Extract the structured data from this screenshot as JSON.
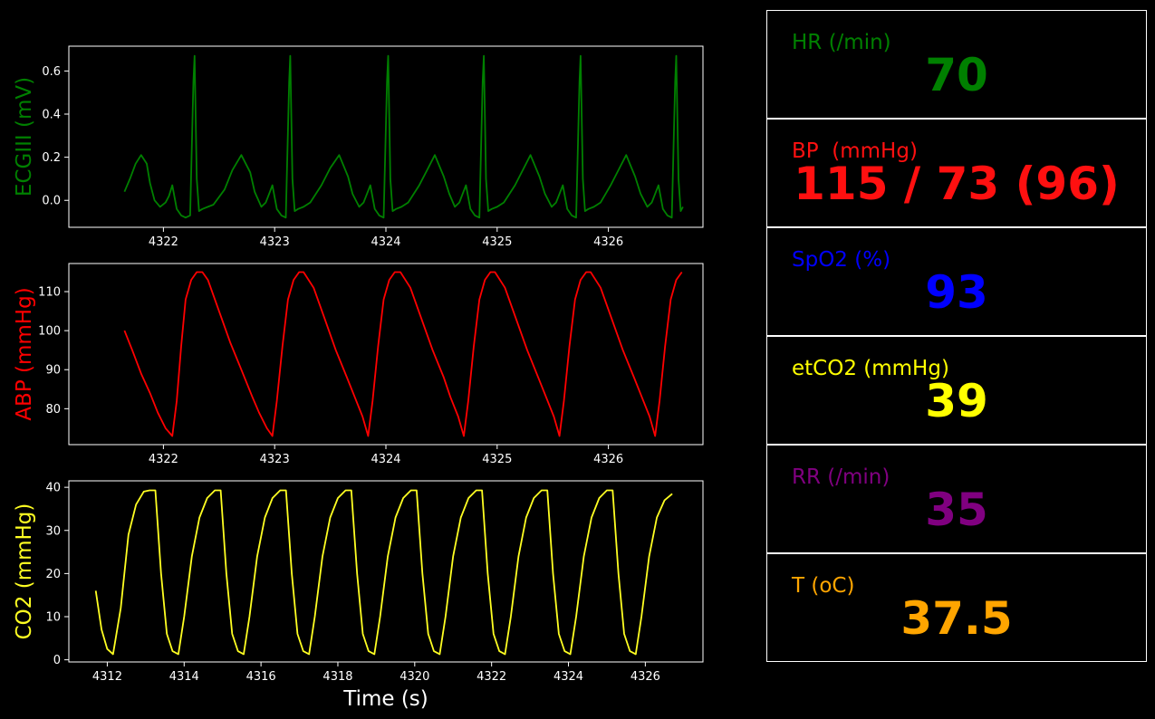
{
  "colors": {
    "background": "#000000",
    "axes": "#ffffff"
  },
  "chart_data": [
    {
      "type": "line",
      "ylabel": "ECGIII (mV)",
      "color": "#008000",
      "xlim": [
        4321.15,
        4326.85
      ],
      "ylim": [
        -0.125,
        0.715
      ],
      "xticks": [
        4322,
        4323,
        4324,
        4325,
        4326
      ],
      "yticks": [
        0.0,
        0.2,
        0.4,
        0.6
      ],
      "ytick_labels": [
        "0.0",
        "0.2",
        "0.4",
        "0.6"
      ],
      "grid": false,
      "series": [
        {
          "x": [
            4321.65,
            4321.7,
            4321.75,
            4321.8,
            4321.85,
            4321.88,
            4321.92,
            4321.97,
            4322.02,
            4322.05,
            4322.08,
            4322.12,
            4322.16,
            4322.2,
            4322.24,
            4322.27,
            4322.28,
            4322.3,
            4322.32,
            4322.35,
            4322.4,
            4322.45,
            4322.55,
            4322.62,
            4322.7,
            4322.78,
            4322.82,
            4322.88,
            4322.92,
            4322.95,
            4322.98,
            4323.02,
            4323.06,
            4323.1,
            4323.13,
            4323.14,
            4323.16,
            4323.18,
            4323.21,
            4323.26,
            4323.32,
            4323.42,
            4323.5,
            4323.58,
            4323.66,
            4323.7,
            4323.76,
            4323.8,
            4323.83,
            4323.86,
            4323.9,
            4323.94,
            4323.98,
            4324.01,
            4324.02,
            4324.04,
            4324.06,
            4324.09,
            4324.14,
            4324.2,
            4324.3,
            4324.38,
            4324.44,
            4324.52,
            4324.57,
            4324.62,
            4324.66,
            4324.69,
            4324.72,
            4324.76,
            4324.8,
            4324.84,
            4324.87,
            4324.88,
            4324.9,
            4324.92,
            4324.95,
            4325.0,
            4325.06,
            4325.16,
            4325.24,
            4325.3,
            4325.38,
            4325.43,
            4325.49,
            4325.53,
            4325.56,
            4325.59,
            4325.63,
            4325.67,
            4325.71,
            4325.74,
            4325.75,
            4325.77,
            4325.79,
            4325.82,
            4325.87,
            4325.93,
            4326.02,
            4326.1,
            4326.16,
            4326.24,
            4326.29,
            4326.35,
            4326.39,
            4326.42,
            4326.45,
            4326.49,
            4326.53,
            4326.57,
            4326.6,
            4326.61,
            4326.63,
            4326.65,
            4326.67
          ],
          "y": [
            0.04,
            0.1,
            0.17,
            0.21,
            0.17,
            0.08,
            0.0,
            -0.03,
            -0.01,
            0.02,
            0.07,
            -0.04,
            -0.07,
            -0.08,
            -0.07,
            0.55,
            0.67,
            0.1,
            -0.05,
            -0.04,
            -0.03,
            -0.02,
            0.05,
            0.14,
            0.21,
            0.13,
            0.04,
            -0.03,
            -0.01,
            0.03,
            0.07,
            -0.04,
            -0.07,
            -0.08,
            0.55,
            0.67,
            0.1,
            -0.05,
            -0.04,
            -0.03,
            -0.01,
            0.07,
            0.15,
            0.21,
            0.11,
            0.03,
            -0.03,
            -0.01,
            0.03,
            0.07,
            -0.04,
            -0.07,
            -0.08,
            0.55,
            0.67,
            0.1,
            -0.05,
            -0.04,
            -0.03,
            -0.01,
            0.07,
            0.15,
            0.21,
            0.11,
            0.03,
            -0.03,
            -0.01,
            0.03,
            0.07,
            -0.04,
            -0.07,
            -0.08,
            0.55,
            0.67,
            0.1,
            -0.05,
            -0.04,
            -0.03,
            -0.01,
            0.07,
            0.15,
            0.21,
            0.11,
            0.03,
            -0.03,
            -0.01,
            0.03,
            0.07,
            -0.04,
            -0.07,
            -0.08,
            0.55,
            0.67,
            0.1,
            -0.05,
            -0.04,
            -0.03,
            -0.01,
            0.07,
            0.15,
            0.21,
            0.11,
            0.03,
            -0.03,
            -0.01,
            0.03,
            0.07,
            -0.04,
            -0.07,
            -0.08,
            0.55,
            0.67,
            0.1,
            -0.05,
            -0.03
          ]
        }
      ]
    },
    {
      "type": "line",
      "ylabel": "ABP (mmHg)",
      "color": "#ff0000",
      "xlim": [
        4321.15,
        4326.85
      ],
      "ylim": [
        70.8,
        117.2
      ],
      "xticks": [
        4322,
        4323,
        4324,
        4325,
        4326
      ],
      "yticks": [
        80,
        90,
        100,
        110
      ],
      "ytick_labels": [
        "80",
        "90",
        "100",
        "110"
      ],
      "grid": false,
      "series": [
        {
          "x": [
            4321.65,
            4321.72,
            4321.8,
            4321.88,
            4321.95,
            4322.02,
            4322.08,
            4322.12,
            4322.16,
            4322.2,
            4322.25,
            4322.3,
            4322.35,
            4322.4,
            4322.5,
            4322.6,
            4322.7,
            4322.8,
            4322.86,
            4322.93,
            4322.98,
            4323.02,
            4323.07,
            4323.12,
            4323.17,
            4323.22,
            4323.26,
            4323.35,
            4323.45,
            4323.55,
            4323.65,
            4323.72,
            4323.79,
            4323.84,
            4323.88,
            4323.93,
            4323.98,
            4324.03,
            4324.08,
            4324.13,
            4324.22,
            4324.32,
            4324.42,
            4324.52,
            4324.58,
            4324.65,
            4324.7,
            4324.74,
            4324.79,
            4324.84,
            4324.89,
            4324.94,
            4324.98,
            4325.07,
            4325.17,
            4325.27,
            4325.37,
            4325.44,
            4325.51,
            4325.56,
            4325.6,
            4325.65,
            4325.7,
            4325.75,
            4325.8,
            4325.84,
            4325.93,
            4326.03,
            4326.13,
            4326.23,
            4326.3,
            4326.37,
            4326.42,
            4326.46,
            4326.51,
            4326.56,
            4326.61,
            4326.66
          ],
          "y": [
            100,
            95,
            89,
            84,
            79,
            75,
            73,
            82,
            96,
            108,
            113,
            115,
            115,
            113,
            105,
            97,
            90,
            83,
            79,
            75,
            73,
            82,
            96,
            108,
            113,
            115,
            115,
            111,
            103,
            95,
            88,
            83,
            78,
            73,
            82,
            96,
            108,
            113,
            115,
            115,
            111,
            103,
            95,
            88,
            83,
            78,
            73,
            82,
            96,
            108,
            113,
            115,
            115,
            111,
            103,
            95,
            88,
            83,
            78,
            73,
            82,
            96,
            108,
            113,
            115,
            115,
            111,
            103,
            95,
            88,
            83,
            78,
            73,
            82,
            96,
            108,
            113,
            115
          ]
        }
      ]
    },
    {
      "type": "line",
      "ylabel": "CO2 (mmHg)",
      "color": "#ffff22",
      "xlim": [
        4311.0,
        4327.5
      ],
      "ylim": [
        -0.5,
        41.5
      ],
      "xticks": [
        4312,
        4314,
        4316,
        4318,
        4320,
        4322,
        4324,
        4326
      ],
      "yticks": [
        0,
        10,
        20,
        30,
        40
      ],
      "ytick_labels": [
        "0",
        "10",
        "20",
        "30",
        "40"
      ],
      "xlabel": "Time (s)",
      "grid": false,
      "series": [
        {
          "x": [
            4311.7,
            4311.85,
            4312.0,
            4312.15,
            4312.35,
            4312.55,
            4312.75,
            4312.95,
            4313.1,
            4313.25,
            4313.4,
            4313.55,
            4313.7,
            4313.85,
            4314.0,
            4314.2,
            4314.4,
            4314.6,
            4314.8,
            4314.95,
            4315.1,
            4315.25,
            4315.4,
            4315.55,
            4315.7,
            4315.9,
            4316.1,
            4316.3,
            4316.5,
            4316.65,
            4316.8,
            4316.95,
            4317.1,
            4317.25,
            4317.4,
            4317.6,
            4317.8,
            4318.0,
            4318.2,
            4318.35,
            4318.5,
            4318.65,
            4318.8,
            4318.95,
            4319.1,
            4319.3,
            4319.5,
            4319.7,
            4319.9,
            4320.05,
            4320.2,
            4320.35,
            4320.5,
            4320.65,
            4320.8,
            4321.0,
            4321.2,
            4321.4,
            4321.6,
            4321.75,
            4321.9,
            4322.05,
            4322.2,
            4322.35,
            4322.5,
            4322.7,
            4322.9,
            4323.1,
            4323.3,
            4323.45,
            4323.6,
            4323.75,
            4323.9,
            4324.05,
            4324.2,
            4324.4,
            4324.6,
            4324.8,
            4325.0,
            4325.15,
            4325.3,
            4325.45,
            4325.6,
            4325.75,
            4325.9,
            4326.1,
            4326.3,
            4326.5,
            4326.7
          ],
          "y": [
            16,
            7,
            2.5,
            1.3,
            12,
            29,
            36,
            39,
            39.3,
            39.3,
            20,
            6,
            2,
            1.3,
            10,
            24,
            33,
            37.5,
            39.3,
            39.3,
            20,
            6,
            2,
            1.3,
            10,
            24,
            33,
            37.5,
            39.3,
            39.3,
            20,
            6,
            2,
            1.3,
            10,
            24,
            33,
            37.5,
            39.3,
            39.3,
            20,
            6,
            2,
            1.3,
            10,
            24,
            33,
            37.5,
            39.3,
            39.3,
            20,
            6,
            2,
            1.3,
            10,
            24,
            33,
            37.5,
            39.3,
            39.3,
            20,
            6,
            2,
            1.3,
            10,
            24,
            33,
            37.5,
            39.3,
            39.3,
            20,
            6,
            2,
            1.3,
            10,
            24,
            33,
            37.5,
            39.3,
            39.3,
            20,
            6,
            2,
            1.3,
            10,
            24,
            33,
            37,
            38.5
          ]
        }
      ]
    }
  ],
  "vitals": [
    {
      "label": "HR (/min)",
      "value": "70",
      "color": "#008000"
    },
    {
      "label": "BP  (mmHg)",
      "value": "115 / 73 (96)",
      "color": "#ff1010"
    },
    {
      "label": "SpO2 (%)",
      "value": "93",
      "color": "#0000ff"
    },
    {
      "label": "etCO2 (mmHg)",
      "value": "39",
      "color": "#ffff00"
    },
    {
      "label": "RR (/min)",
      "value": "35",
      "color": "#800080"
    },
    {
      "label": "T (oC)",
      "value": "37.5",
      "color": "#ffa500"
    }
  ]
}
